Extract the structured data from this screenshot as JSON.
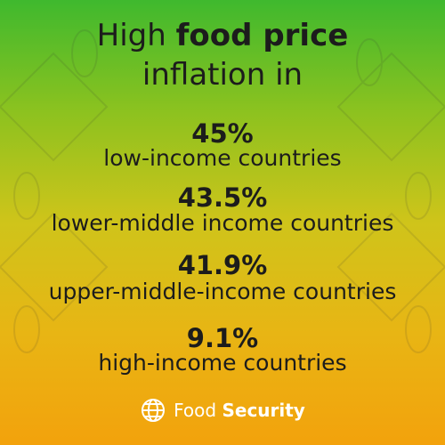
{
  "title": {
    "segments": [
      "High",
      "food price",
      "inflation in"
    ]
  },
  "items": [
    {
      "value": "45%",
      "label": "low-income countries"
    },
    {
      "value": "43.5%",
      "label": "lower-middle income countries"
    },
    {
      "value": "41.9%",
      "label": "upper-middle-income countries"
    },
    {
      "value": "9.1%",
      "label": "high-income countries"
    }
  ],
  "footer": {
    "brand": [
      "Food",
      "Security"
    ]
  }
}
